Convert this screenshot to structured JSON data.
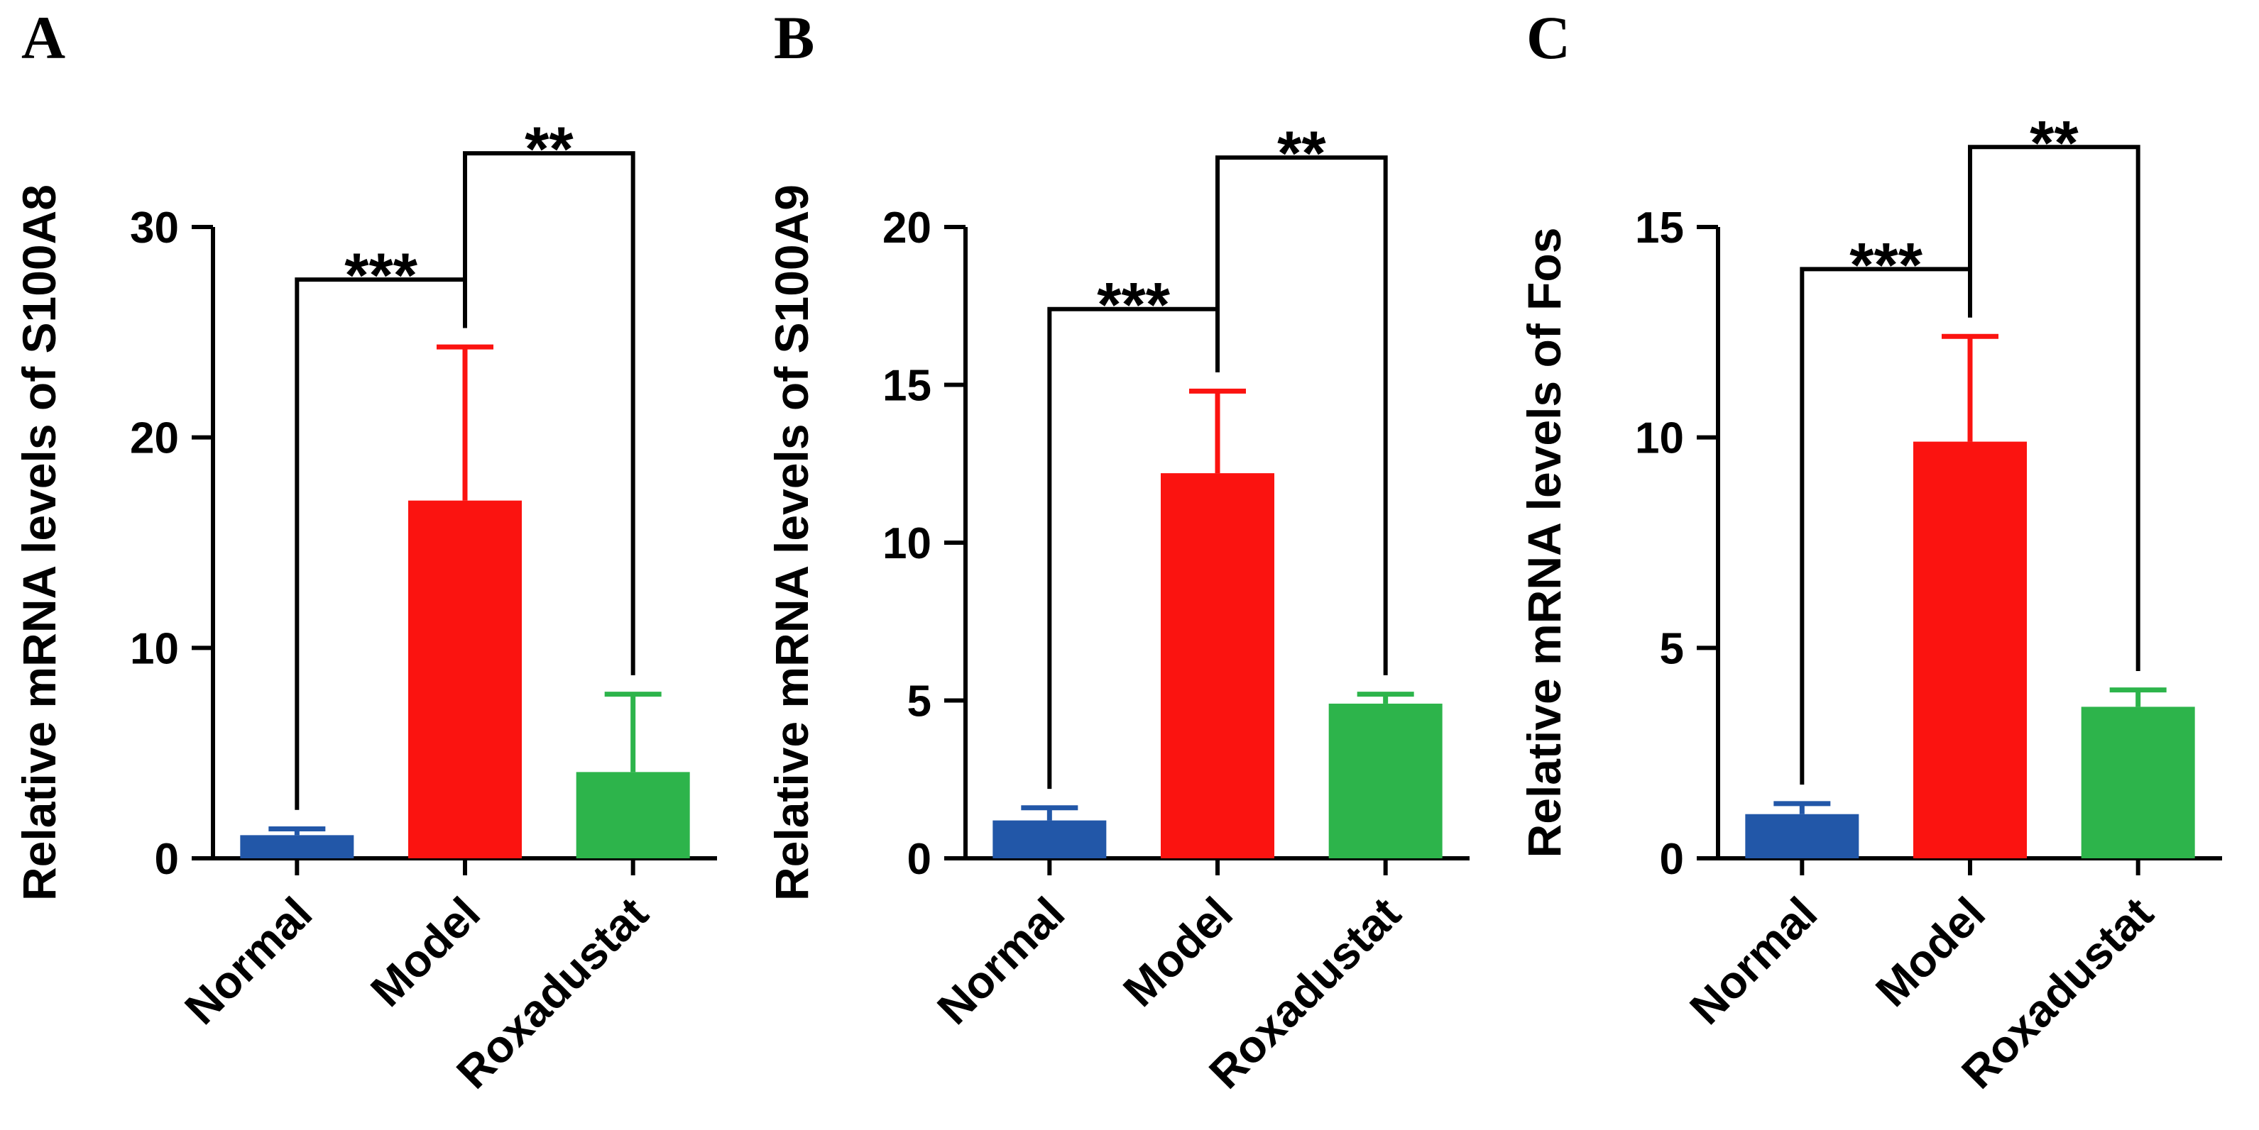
{
  "chart_data": [
    {
      "type": "bar",
      "panel_label": "A",
      "title": "",
      "xlabel": "",
      "ylabel": "Relative mRNA levels of S100A8",
      "categories": [
        "Normal",
        "Model",
        "Roxadustat"
      ],
      "values": [
        1.1,
        17.0,
        4.1
      ],
      "errors_up": [
        0.3,
        7.3,
        3.7
      ],
      "colors": [
        "#2257A8",
        "#FB1310",
        "#2DB44B"
      ],
      "ylim": [
        0,
        30
      ],
      "yticks": [
        0,
        10,
        20,
        30
      ],
      "grid": false,
      "legend": false,
      "annotations": [
        {
          "from": 0,
          "to": 1,
          "label": "***",
          "top": 27.5
        },
        {
          "from": 1,
          "to": 2,
          "label": "**",
          "top": 33.5
        }
      ]
    },
    {
      "type": "bar",
      "panel_label": "B",
      "title": "",
      "xlabel": "",
      "ylabel": "Relative mRNA levels of S100A9",
      "categories": [
        "Normal",
        "Model",
        "Roxadustat"
      ],
      "values": [
        1.2,
        12.2,
        4.9
      ],
      "errors_up": [
        0.4,
        2.6,
        0.3
      ],
      "colors": [
        "#2257A8",
        "#FB1310",
        "#2DB44B"
      ],
      "ylim": [
        0,
        20
      ],
      "yticks": [
        0,
        5,
        10,
        15,
        20
      ],
      "grid": false,
      "legend": false,
      "annotations": [
        {
          "from": 0,
          "to": 1,
          "label": "***",
          "top": 17.4
        },
        {
          "from": 1,
          "to": 2,
          "label": "**",
          "top": 22.2
        }
      ]
    },
    {
      "type": "bar",
      "panel_label": "C",
      "title": "",
      "xlabel": "",
      "ylabel": "Relative mRNA levels of Fos",
      "categories": [
        "Normal",
        "Model",
        "Roxadustat"
      ],
      "values": [
        1.05,
        9.9,
        3.6
      ],
      "errors_up": [
        0.25,
        2.5,
        0.4
      ],
      "colors": [
        "#2257A8",
        "#FB1310",
        "#2DB44B"
      ],
      "ylim": [
        0,
        15
      ],
      "yticks": [
        0,
        5,
        10,
        15
      ],
      "grid": false,
      "legend": false,
      "annotations": [
        {
          "from": 0,
          "to": 1,
          "label": "***",
          "top": 14.0
        },
        {
          "from": 1,
          "to": 2,
          "label": "**",
          "top": 16.9
        }
      ]
    }
  ]
}
